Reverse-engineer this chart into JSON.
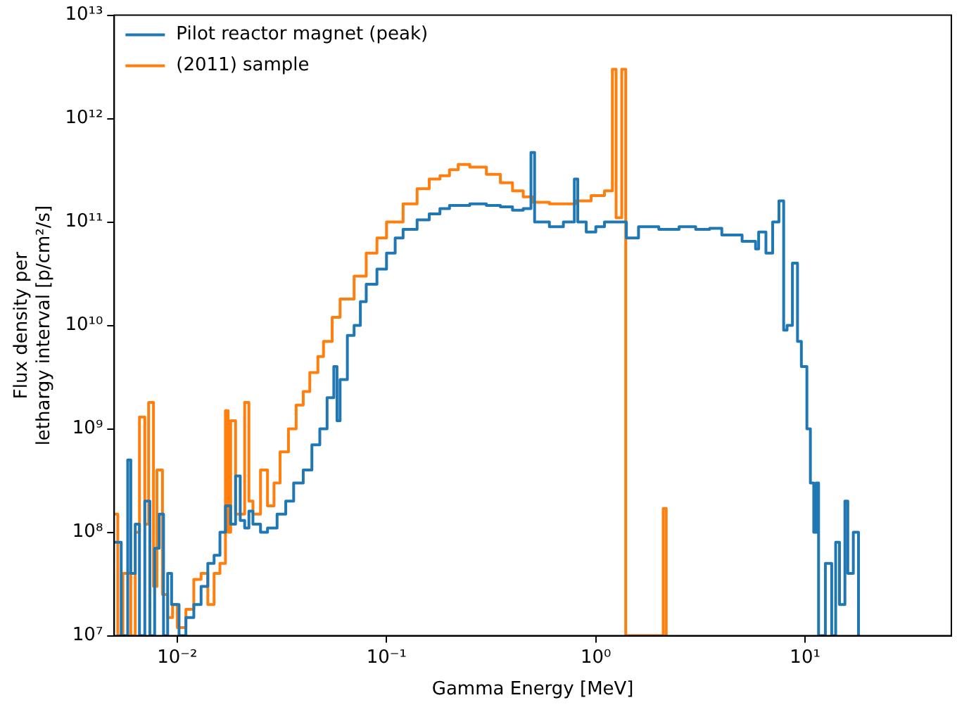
{
  "chart_data": {
    "type": "step",
    "xlabel": "Gamma Energy [MeV]",
    "ylabel": "Flux density per\nlethargy interval [p/cm²/s]",
    "log": "xy",
    "grid": false,
    "legend": "top left",
    "xlim": [
      0.005,
      50
    ],
    "xticks": [
      {
        "value": 0.01,
        "label": "10⁻²"
      },
      {
        "value": 0.1,
        "label": "10⁻¹"
      },
      {
        "value": 1,
        "label": "10⁰"
      },
      {
        "value": 10,
        "label": "10¹"
      }
    ],
    "ylim": [
      10000000.0,
      10000000000000.0
    ],
    "yticks": [
      {
        "value": 10000000.0,
        "label": "10⁷"
      },
      {
        "value": 100000000.0,
        "label": "10⁸"
      },
      {
        "value": 1000000000.0,
        "label": "10⁹"
      },
      {
        "value": 10000000000.0,
        "label": "10¹⁰"
      },
      {
        "value": 100000000000.0,
        "label": "10¹¹"
      },
      {
        "value": 1000000000000.0,
        "label": "10¹²"
      },
      {
        "value": 10000000000000.0,
        "label": "10¹³"
      }
    ],
    "series": [
      {
        "name": "Pilot reactor magnet (peak)",
        "color": "#1f77b4",
        "x": [
          0.005,
          0.0054,
          0.0058,
          0.006,
          0.0063,
          0.0066,
          0.007,
          0.0074,
          0.0078,
          0.0082,
          0.0086,
          0.009,
          0.0094,
          0.0102,
          0.011,
          0.012,
          0.013,
          0.014,
          0.015,
          0.016,
          0.017,
          0.018,
          0.019,
          0.02,
          0.021,
          0.022,
          0.023,
          0.025,
          0.027,
          0.03,
          0.033,
          0.036,
          0.04,
          0.044,
          0.048,
          0.052,
          0.056,
          0.058,
          0.06,
          0.065,
          0.07,
          0.075,
          0.08,
          0.09,
          0.1,
          0.11,
          0.12,
          0.14,
          0.16,
          0.18,
          0.2,
          0.25,
          0.3,
          0.35,
          0.4,
          0.45,
          0.49,
          0.51,
          0.6,
          0.7,
          0.79,
          0.82,
          0.9,
          1.0,
          1.1,
          1.3,
          1.4,
          1.6,
          2.0,
          2.5,
          3.0,
          3.5,
          4,
          5,
          5.8,
          6,
          6.5,
          7,
          7.5,
          7.9,
          8.2,
          8.7,
          9.2,
          9.6,
          10.2,
          10.6,
          11,
          11.3,
          11.6,
          12.5,
          13.4,
          14,
          14.6,
          15.5,
          16,
          17,
          18
        ],
        "values": [
          80000000.0,
          10000000.0,
          500000000.0,
          40000000.0,
          120000000.0,
          10000000.0,
          200000000.0,
          10000000.0,
          70000000.0,
          150000000.0,
          10000000.0,
          40000000.0,
          20000000.0,
          10000000.0,
          15000000.0,
          20000000.0,
          30000000.0,
          50000000.0,
          60000000.0,
          100000000.0,
          180000000.0,
          120000000.0,
          350000000.0,
          130000000.0,
          110000000.0,
          160000000.0,
          120000000.0,
          100000000.0,
          110000000.0,
          150000000.0,
          200000000.0,
          300000000.0,
          400000000.0,
          700000000.0,
          1000000000.0,
          2000000000.0,
          4000000000.0,
          1200000000.0,
          3000000000.0,
          8000000000.0,
          10000000000.0,
          17000000000.0,
          25000000000.0,
          35000000000.0,
          50000000000.0,
          70000000000.0,
          85000000000.0,
          105000000000.0,
          120000000000.0,
          135000000000.0,
          145000000000.0,
          150000000000.0,
          145000000000.0,
          140000000000.0,
          130000000000.0,
          135000000000.0,
          470000000000.0,
          100000000000.0,
          90000000000.0,
          100000000000.0,
          260000000000.0,
          100000000000.0,
          80000000000.0,
          90000000000.0,
          100000000000.0,
          100000000000.0,
          70000000000.0,
          90000000000.0,
          85000000000.0,
          90000000000.0,
          85000000000.0,
          87000000000.0,
          75000000000.0,
          65000000000.0,
          55000000000.0,
          80000000000.0,
          50000000000.0,
          100000000000.0,
          160000000000.0,
          9000000000.0,
          10000000000.0,
          40000000000.0,
          7000000000.0,
          4000000000.0,
          1000000000.0,
          300000000.0,
          100000000.0,
          300000000.0,
          10000000.0,
          50000000.0,
          10000000.0,
          80000000.0,
          20000000.0,
          200000000.0,
          40000000.0,
          100000000.0,
          10000000.0
        ]
      },
      {
        "name": "(2011) sample",
        "color": "#ff7f0e",
        "x": [
          0.005,
          0.0052,
          0.0055,
          0.006,
          0.0063,
          0.0066,
          0.007,
          0.0073,
          0.0077,
          0.008,
          0.0085,
          0.009,
          0.0095,
          0.01,
          0.011,
          0.012,
          0.013,
          0.014,
          0.015,
          0.016,
          0.017,
          0.0175,
          0.018,
          0.019,
          0.021,
          0.022,
          0.023,
          0.025,
          0.027,
          0.029,
          0.031,
          0.034,
          0.037,
          0.04,
          0.043,
          0.047,
          0.05,
          0.055,
          0.06,
          0.07,
          0.08,
          0.09,
          0.1,
          0.12,
          0.14,
          0.16,
          0.18,
          0.2,
          0.22,
          0.25,
          0.3,
          0.35,
          0.4,
          0.45,
          0.5,
          0.6,
          0.7,
          0.8,
          0.95,
          1.1,
          1.2,
          1.25,
          1.33,
          1.39,
          2.1,
          2.17
        ],
        "values": [
          150000000.0,
          10000000.0,
          40000000.0,
          10000000.0,
          100000000.0,
          1300000000.0,
          120000000.0,
          1800000000.0,
          30000000.0,
          400000000.0,
          25000000.0,
          15000000.0,
          20000000.0,
          12000000.0,
          18000000.0,
          35000000.0,
          40000000.0,
          20000000.0,
          40000000.0,
          50000000.0,
          1500000000.0,
          100000000.0,
          1200000000.0,
          150000000.0,
          1800000000.0,
          200000000.0,
          150000000.0,
          400000000.0,
          180000000.0,
          300000000.0,
          600000000.0,
          1000000000.0,
          1700000000.0,
          2300000000.0,
          3500000000.0,
          5000000000.0,
          7000000000.0,
          12000000000.0,
          18000000000.0,
          30000000000.0,
          50000000000.0,
          70000000000.0,
          100000000000.0,
          150000000000.0,
          210000000000.0,
          260000000000.0,
          280000000000.0,
          320000000000.0,
          360000000000.0,
          340000000000.0,
          290000000000.0,
          240000000000.0,
          200000000000.0,
          175000000000.0,
          155000000000.0,
          150000000000.0,
          150000000000.0,
          160000000000.0,
          180000000000.0,
          200000000000.0,
          3000000000000.0,
          110000000000.0,
          3000000000000.0,
          10000000.0,
          170000000.0,
          10000000.0
        ]
      }
    ]
  }
}
